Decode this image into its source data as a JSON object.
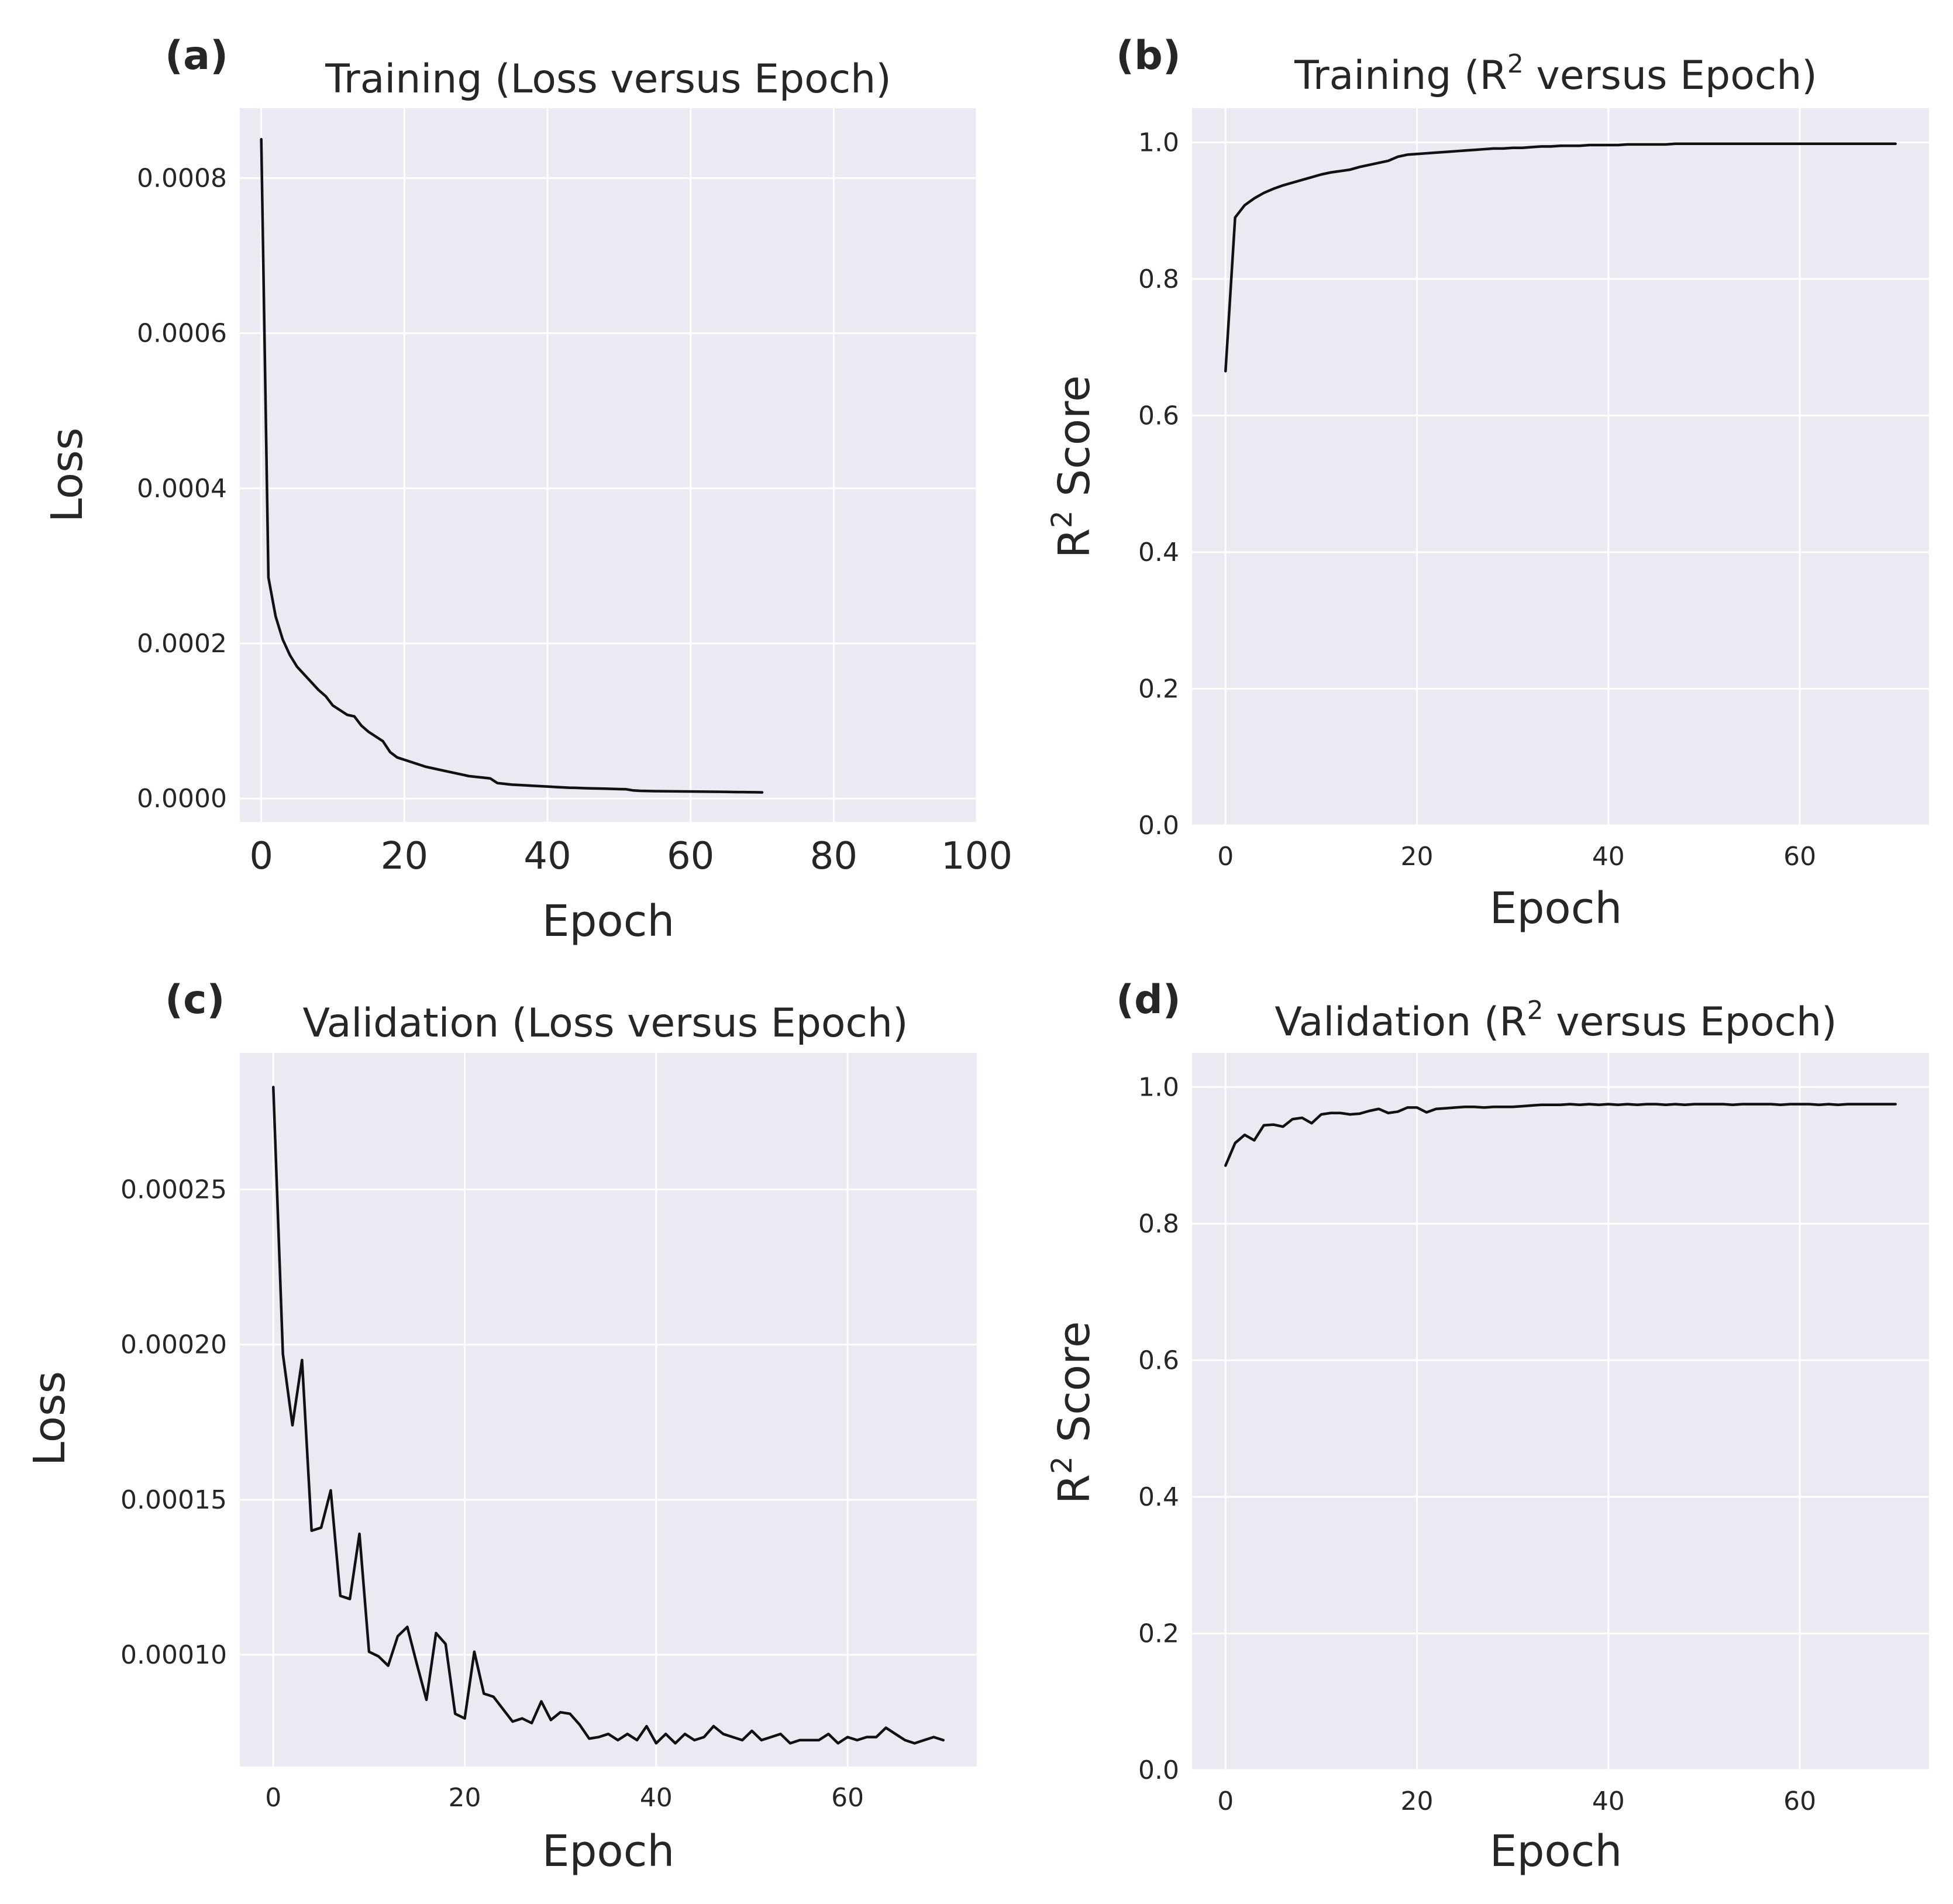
{
  "chart_data": [
    {
      "id": "a",
      "type": "line",
      "panel_label": "(a)",
      "title": "Training (Loss versus Epoch)",
      "xlabel": "Epoch",
      "ylabel": "Loss",
      "xlim": [
        -3,
        100
      ],
      "ylim": [
        -3e-05,
        0.00089
      ],
      "xticks": [
        0,
        20,
        40,
        60,
        80,
        100
      ],
      "xtick_labels": [
        "0",
        "20",
        "40",
        "60",
        "80",
        "100"
      ],
      "yticks": [
        0,
        0.0002,
        0.0004,
        0.0006,
        0.0008
      ],
      "ytick_labels": [
        "0.0000",
        "0.0002",
        "0.0004",
        "0.0006",
        "0.0008"
      ],
      "grid": true,
      "series": [
        {
          "name": "Loss",
          "x": [
            0,
            1,
            2,
            3,
            4,
            5,
            6,
            7,
            8,
            9,
            10,
            11,
            12,
            13,
            14,
            15,
            16,
            17,
            18,
            19,
            20,
            21,
            22,
            23,
            24,
            25,
            26,
            27,
            28,
            29,
            30,
            31,
            32,
            33,
            34,
            35,
            36,
            37,
            38,
            39,
            40,
            41,
            42,
            43,
            44,
            45,
            46,
            47,
            48,
            49,
            50,
            51,
            52,
            53,
            54,
            55,
            56,
            57,
            58,
            59,
            60,
            61,
            62,
            63,
            64,
            65,
            66,
            67,
            68,
            69,
            70
          ],
          "y": [
            0.00085,
            0.000285,
            0.000235,
            0.000205,
            0.000185,
            0.00017,
            0.00016,
            0.00015,
            0.00014,
            0.000132,
            0.00012,
            0.000114,
            0.000108,
            0.000106,
            9.4e-05,
            8.6e-05,
            8e-05,
            7.4e-05,
            6e-05,
            5.3e-05,
            5e-05,
            4.7e-05,
            4.4e-05,
            4.1e-05,
            3.9e-05,
            3.7e-05,
            3.5e-05,
            3.3e-05,
            3.1e-05,
            2.9e-05,
            2.8e-05,
            2.7e-05,
            2.6e-05,
            2e-05,
            1.9e-05,
            1.8e-05,
            1.75e-05,
            1.7e-05,
            1.65e-05,
            1.6e-05,
            1.55e-05,
            1.5e-05,
            1.45e-05,
            1.4e-05,
            1.38e-05,
            1.35e-05,
            1.32e-05,
            1.3e-05,
            1.28e-05,
            1.25e-05,
            1.22e-05,
            1.2e-05,
            1.05e-05,
            1e-05,
            9.8e-06,
            9.6e-06,
            9.5e-06,
            9.4e-06,
            9.3e-06,
            9.2e-06,
            9.1e-06,
            9e-06,
            8.9e-06,
            8.8e-06,
            8.7e-06,
            8.6e-06,
            8.5e-06,
            8.4e-06,
            8.3e-06,
            8.2e-06,
            8e-06
          ]
        }
      ]
    },
    {
      "id": "b",
      "type": "line",
      "panel_label": "(b)",
      "title_prefix": "Training (R",
      "title_sup": "2",
      "title_suffix": " versus Epoch)",
      "xlabel": "Epoch",
      "ylabel_prefix": "R",
      "ylabel_sup": "2",
      "ylabel_suffix": " Score",
      "xlim": [
        -3.5,
        73.5
      ],
      "ylim": [
        0,
        1.05
      ],
      "xticks": [
        0,
        20,
        40,
        60
      ],
      "xtick_labels": [
        "0",
        "20",
        "40",
        "60"
      ],
      "yticks": [
        0,
        0.2,
        0.4,
        0.6,
        0.8,
        1.0
      ],
      "ytick_labels": [
        "0.0",
        "0.2",
        "0.4",
        "0.6",
        "0.8",
        "1.0"
      ],
      "grid": true,
      "series": [
        {
          "name": "R2",
          "x": [
            0,
            1,
            2,
            3,
            4,
            5,
            6,
            7,
            8,
            9,
            10,
            11,
            12,
            13,
            14,
            15,
            16,
            17,
            18,
            19,
            20,
            21,
            22,
            23,
            24,
            25,
            26,
            27,
            28,
            29,
            30,
            31,
            32,
            33,
            34,
            35,
            36,
            37,
            38,
            39,
            40,
            41,
            42,
            43,
            44,
            45,
            46,
            47,
            48,
            49,
            50,
            51,
            52,
            53,
            54,
            55,
            56,
            57,
            58,
            59,
            60,
            61,
            62,
            63,
            64,
            65,
            66,
            67,
            68,
            69,
            70
          ],
          "y": [
            0.665,
            0.89,
            0.908,
            0.918,
            0.926,
            0.932,
            0.937,
            0.941,
            0.945,
            0.949,
            0.953,
            0.956,
            0.958,
            0.96,
            0.964,
            0.967,
            0.97,
            0.973,
            0.979,
            0.982,
            0.983,
            0.984,
            0.985,
            0.986,
            0.987,
            0.988,
            0.989,
            0.99,
            0.991,
            0.991,
            0.992,
            0.992,
            0.993,
            0.994,
            0.994,
            0.995,
            0.995,
            0.995,
            0.996,
            0.996,
            0.996,
            0.996,
            0.997,
            0.997,
            0.997,
            0.997,
            0.997,
            0.998,
            0.998,
            0.998,
            0.998,
            0.998,
            0.998,
            0.998,
            0.998,
            0.998,
            0.998,
            0.998,
            0.998,
            0.998,
            0.998,
            0.998,
            0.998,
            0.998,
            0.998,
            0.998,
            0.998,
            0.998,
            0.998,
            0.998,
            0.998
          ]
        }
      ]
    },
    {
      "id": "c",
      "type": "line",
      "panel_label": "(c)",
      "title": "Validation (Loss versus Epoch)",
      "xlabel": "Epoch",
      "ylabel": "Loss",
      "xlim": [
        -3.5,
        73.5
      ],
      "ylim": [
        6.4e-05,
        0.000294
      ],
      "xticks": [
        0,
        20,
        40,
        60
      ],
      "xtick_labels": [
        "0",
        "20",
        "40",
        "60"
      ],
      "yticks": [
        0.0001,
        0.00015,
        0.0002,
        0.00025
      ],
      "ytick_labels": [
        "0.00010",
        "0.00015",
        "0.00020",
        "0.00025"
      ],
      "grid": true,
      "series": [
        {
          "name": "Validation Loss",
          "x": [
            0,
            1,
            2,
            3,
            4,
            5,
            6,
            7,
            8,
            9,
            10,
            11,
            12,
            13,
            14,
            15,
            16,
            17,
            18,
            19,
            20,
            21,
            22,
            23,
            24,
            25,
            26,
            27,
            28,
            29,
            30,
            31,
            32,
            33,
            34,
            35,
            36,
            37,
            38,
            39,
            40,
            41,
            42,
            43,
            44,
            45,
            46,
            47,
            48,
            49,
            50,
            51,
            52,
            53,
            54,
            55,
            56,
            57,
            58,
            59,
            60,
            61,
            62,
            63,
            64,
            65,
            66,
            67,
            68,
            69,
            70
          ],
          "y": [
            0.000283,
            0.000197,
            0.000174,
            0.000195,
            0.00014,
            0.000141,
            0.000153,
            0.000119,
            0.000118,
            0.000139,
            0.000101,
            9.95e-05,
            9.65e-05,
            0.000106,
            0.000109,
            9.7e-05,
            8.55e-05,
            0.000107,
            0.0001035,
            8.1e-05,
            7.95e-05,
            0.000101,
            8.75e-05,
            8.65e-05,
            8.25e-05,
            7.85e-05,
            7.95e-05,
            7.8e-05,
            8.5e-05,
            7.9e-05,
            8.15e-05,
            8.1e-05,
            7.75e-05,
            7.3e-05,
            7.35e-05,
            7.45e-05,
            7.25e-05,
            7.45e-05,
            7.25e-05,
            7.7e-05,
            7.15e-05,
            7.45e-05,
            7.15e-05,
            7.45e-05,
            7.25e-05,
            7.35e-05,
            7.7e-05,
            7.45e-05,
            7.35e-05,
            7.25e-05,
            7.55e-05,
            7.25e-05,
            7.35e-05,
            7.45e-05,
            7.15e-05,
            7.25e-05,
            7.25e-05,
            7.25e-05,
            7.45e-05,
            7.15e-05,
            7.35e-05,
            7.25e-05,
            7.35e-05,
            7.35e-05,
            7.65e-05,
            7.45e-05,
            7.25e-05,
            7.15e-05,
            7.25e-05,
            7.35e-05,
            7.25e-05
          ]
        }
      ]
    },
    {
      "id": "d",
      "type": "line",
      "panel_label": "(d)",
      "title_prefix": "Validation (R",
      "title_sup": "2",
      "title_suffix": " versus Epoch)",
      "xlabel": "Epoch",
      "ylabel_prefix": "R",
      "ylabel_sup": "2",
      "ylabel_suffix": " Score",
      "xlim": [
        -3.5,
        73.5
      ],
      "ylim": [
        0,
        1.05
      ],
      "xticks": [
        0,
        20,
        40,
        60
      ],
      "xtick_labels": [
        "0",
        "20",
        "40",
        "60"
      ],
      "yticks": [
        0,
        0.2,
        0.4,
        0.6,
        0.8,
        1.0
      ],
      "ytick_labels": [
        "0.0",
        "0.2",
        "0.4",
        "0.6",
        "0.8",
        "1.0"
      ],
      "grid": true,
      "series": [
        {
          "name": "Validation R2",
          "x": [
            0,
            1,
            2,
            3,
            4,
            5,
            6,
            7,
            8,
            9,
            10,
            11,
            12,
            13,
            14,
            15,
            16,
            17,
            18,
            19,
            20,
            21,
            22,
            23,
            24,
            25,
            26,
            27,
            28,
            29,
            30,
            31,
            32,
            33,
            34,
            35,
            36,
            37,
            38,
            39,
            40,
            41,
            42,
            43,
            44,
            45,
            46,
            47,
            48,
            49,
            50,
            51,
            52,
            53,
            54,
            55,
            56,
            57,
            58,
            59,
            60,
            61,
            62,
            63,
            64,
            65,
            66,
            67,
            68,
            69,
            70
          ],
          "y": [
            0.885,
            0.918,
            0.93,
            0.922,
            0.944,
            0.945,
            0.942,
            0.953,
            0.955,
            0.947,
            0.96,
            0.962,
            0.962,
            0.96,
            0.961,
            0.965,
            0.968,
            0.962,
            0.964,
            0.97,
            0.97,
            0.963,
            0.968,
            0.969,
            0.97,
            0.971,
            0.971,
            0.97,
            0.971,
            0.971,
            0.971,
            0.972,
            0.973,
            0.974,
            0.974,
            0.974,
            0.975,
            0.974,
            0.975,
            0.974,
            0.975,
            0.974,
            0.975,
            0.974,
            0.975,
            0.975,
            0.974,
            0.975,
            0.974,
            0.975,
            0.975,
            0.975,
            0.975,
            0.974,
            0.975,
            0.975,
            0.975,
            0.975,
            0.974,
            0.975,
            0.975,
            0.975,
            0.974,
            0.975,
            0.974,
            0.975,
            0.975,
            0.975,
            0.975,
            0.975,
            0.975
          ]
        }
      ]
    }
  ]
}
